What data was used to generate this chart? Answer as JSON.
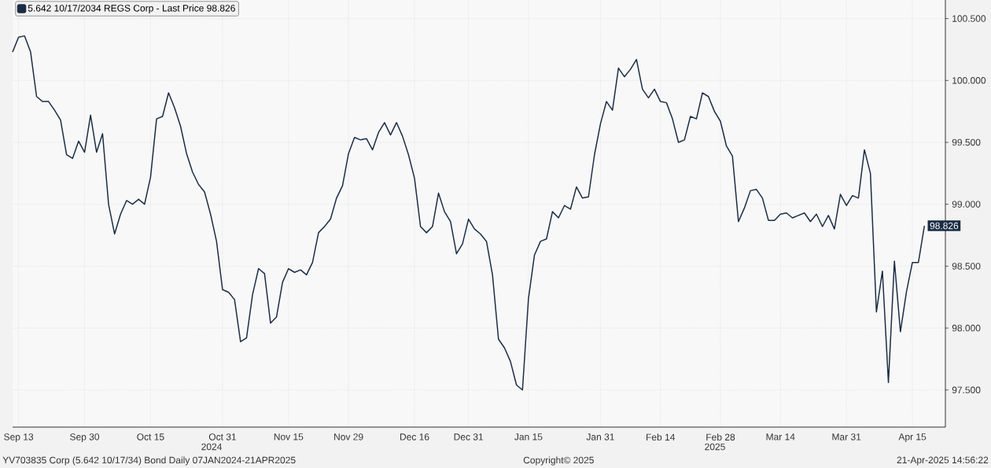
{
  "chart_data": {
    "type": "line",
    "categories": [
      null,
      "Sep 13",
      null,
      null,
      null,
      null,
      null,
      null,
      null,
      null,
      null,
      null,
      "Sep 30",
      null,
      null,
      null,
      null,
      null,
      null,
      null,
      null,
      null,
      null,
      "Oct 15",
      null,
      null,
      null,
      null,
      null,
      null,
      null,
      null,
      null,
      null,
      null,
      "Oct 31",
      null,
      null,
      null,
      null,
      null,
      null,
      null,
      null,
      null,
      null,
      "Nov 15",
      null,
      null,
      null,
      null,
      null,
      null,
      null,
      null,
      null,
      "Nov 29",
      null,
      null,
      null,
      null,
      null,
      null,
      null,
      null,
      null,
      null,
      "Dec 16",
      null,
      null,
      null,
      null,
      null,
      null,
      null,
      null,
      "Dec 31",
      null,
      null,
      null,
      null,
      null,
      null,
      null,
      null,
      null,
      "Jan 15",
      null,
      null,
      null,
      null,
      null,
      null,
      null,
      null,
      null,
      null,
      null,
      "Jan 31",
      null,
      null,
      null,
      null,
      null,
      null,
      null,
      null,
      null,
      "Feb 14",
      null,
      null,
      null,
      null,
      null,
      null,
      null,
      null,
      null,
      "Feb 28",
      null,
      null,
      null,
      null,
      null,
      null,
      null,
      null,
      null,
      "Mar 14",
      null,
      null,
      null,
      null,
      null,
      null,
      null,
      null,
      null,
      null,
      "Mar 31",
      null,
      null,
      null,
      null,
      null,
      null,
      null,
      null,
      null,
      null,
      "Apr 15",
      null,
      null
    ],
    "series": [
      {
        "name": "5.642 10/17/2034 REGS Corp - Last Price 98.826",
        "color": "#1b2d45",
        "values": [
          100.23,
          100.35,
          100.36,
          100.23,
          99.87,
          99.83,
          99.83,
          99.76,
          99.68,
          99.4,
          99.37,
          99.51,
          99.42,
          99.72,
          99.42,
          99.57,
          99.0,
          98.76,
          98.92,
          99.03,
          99.0,
          99.04,
          99.0,
          99.22,
          99.69,
          99.71,
          99.9,
          99.78,
          99.63,
          99.41,
          99.26,
          99.16,
          99.1,
          98.92,
          98.7,
          98.31,
          98.29,
          98.23,
          97.89,
          97.92,
          98.27,
          98.48,
          98.44,
          98.04,
          98.09,
          98.37,
          98.48,
          98.45,
          98.47,
          98.43,
          98.53,
          98.77,
          98.82,
          98.88,
          99.05,
          99.15,
          99.41,
          99.54,
          99.52,
          99.53,
          99.44,
          99.58,
          99.66,
          99.56,
          99.66,
          99.55,
          99.4,
          99.21,
          98.82,
          98.77,
          98.82,
          99.09,
          98.94,
          98.86,
          98.6,
          98.68,
          98.88,
          98.8,
          98.76,
          98.7,
          98.43,
          97.91,
          97.84,
          97.73,
          97.54,
          97.5,
          98.24,
          98.59,
          98.7,
          98.72,
          98.94,
          98.89,
          98.99,
          98.96,
          99.14,
          99.05,
          99.06,
          99.4,
          99.65,
          99.83,
          99.76,
          100.1,
          100.03,
          100.09,
          100.17,
          99.93,
          99.86,
          99.93,
          99.83,
          99.82,
          99.69,
          99.5,
          99.52,
          99.71,
          99.69,
          99.9,
          99.87,
          99.75,
          99.67,
          99.47,
          99.39,
          98.86,
          98.97,
          99.11,
          99.12,
          99.05,
          98.87,
          98.87,
          98.92,
          98.93,
          98.89,
          98.91,
          98.93,
          98.86,
          98.92,
          98.82,
          98.91,
          98.8,
          99.08,
          98.99,
          99.07,
          99.05,
          99.44,
          99.25,
          98.13,
          98.46,
          97.56,
          98.54,
          97.97,
          98.29,
          98.53,
          98.53,
          98.826
        ],
        "value_labels": [
          null,
          null,
          null,
          null,
          null,
          null,
          null,
          null,
          null,
          null,
          null,
          null,
          null,
          null,
          null,
          null,
          null,
          null,
          null,
          null,
          null,
          null,
          null,
          null,
          null,
          null,
          null,
          null,
          null,
          null,
          null,
          null,
          null,
          null,
          null,
          null,
          null,
          null,
          null,
          null,
          null,
          null,
          null,
          null,
          null,
          null,
          null,
          null,
          null,
          null,
          null,
          null,
          null,
          null,
          null,
          null,
          null,
          null,
          null,
          null,
          null,
          null,
          null,
          null,
          null,
          null,
          null,
          null,
          null,
          null,
          null,
          null,
          null,
          null,
          null,
          null,
          null,
          null,
          null,
          null,
          null,
          null,
          null,
          null,
          null,
          null,
          null,
          null,
          null,
          null,
          null,
          null,
          null,
          null,
          null,
          null,
          null,
          null,
          null,
          null,
          null,
          null,
          null,
          null,
          null,
          null,
          null,
          null,
          null,
          null,
          null,
          null,
          null,
          null,
          null,
          null,
          null,
          null,
          null,
          null,
          null,
          null,
          null,
          null,
          null,
          null,
          null,
          null,
          null,
          null,
          null,
          null,
          null,
          null,
          null,
          null,
          null,
          null,
          null,
          null,
          null,
          null,
          null,
          null,
          null,
          null,
          null,
          null,
          null,
          null,
          null,
          null,
          "98.826"
        ]
      }
    ],
    "ylim": [
      97.2,
      100.65
    ],
    "yticks": [
      {
        "value": 97.5,
        "label": "97.500"
      },
      {
        "value": 98.0,
        "label": "98.000"
      },
      {
        "value": 98.5,
        "label": "98.500"
      },
      {
        "value": 99.0,
        "label": "99.000"
      },
      {
        "value": 99.5,
        "label": "99.500"
      },
      {
        "value": 100.0,
        "label": "100.000"
      },
      {
        "value": 100.5,
        "label": "100.500"
      }
    ],
    "grid": true,
    "legend": "top left",
    "marker": "none",
    "line_style": "solid",
    "annotations": [
      "2024",
      "2025",
      "YV703835 Corp (5.642 10/17/34) Bond  Daily 07JAN2024-21APR2025",
      "Copyright© 2025",
      "21-Apr-2025 14:56:22"
    ]
  }
}
